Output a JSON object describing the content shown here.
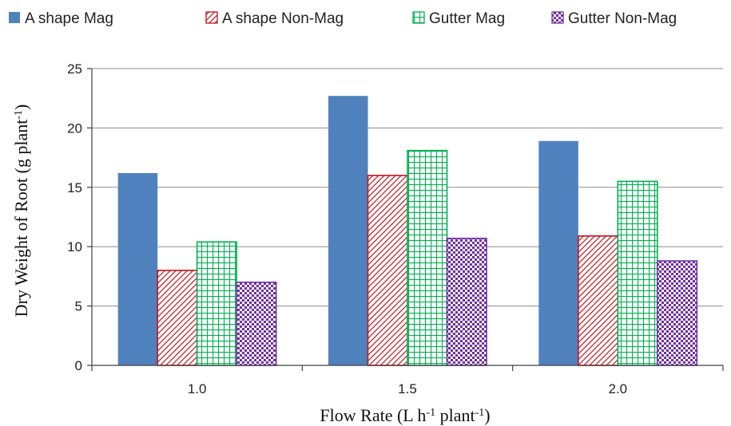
{
  "chart_data": {
    "type": "bar",
    "xlabel": {
      "main": "Flow Rate (L h",
      "sup1": "-1",
      "mid": " plant",
      "sup2": "-1",
      "end": ")"
    },
    "ylabel": {
      "main": "Dry Weight of Root (g plant",
      "sup": "-1",
      "end": ")"
    },
    "categories": [
      "1.0",
      "1.5",
      "2.0"
    ],
    "ylim": [
      0,
      25
    ],
    "yticks": [
      "0",
      "5",
      "10",
      "15",
      "20",
      "25"
    ],
    "grid": true,
    "legend_position": "top",
    "series": [
      {
        "name": "A shape Mag",
        "values": [
          16.2,
          22.7,
          18.9
        ],
        "color": "#4F81BD",
        "pattern": "solid"
      },
      {
        "name": "A shape Non-Mag",
        "values": [
          8.0,
          16.0,
          10.9
        ],
        "color": "#C0151B",
        "pattern": "diagonal"
      },
      {
        "name": "Gutter Mag",
        "values": [
          10.4,
          18.1,
          15.5
        ],
        "color": "#00B050",
        "pattern": "grid"
      },
      {
        "name": "Gutter Non-Mag",
        "values": [
          7.0,
          10.7,
          8.8
        ],
        "color": "#7030A0",
        "pattern": "checker"
      }
    ]
  }
}
